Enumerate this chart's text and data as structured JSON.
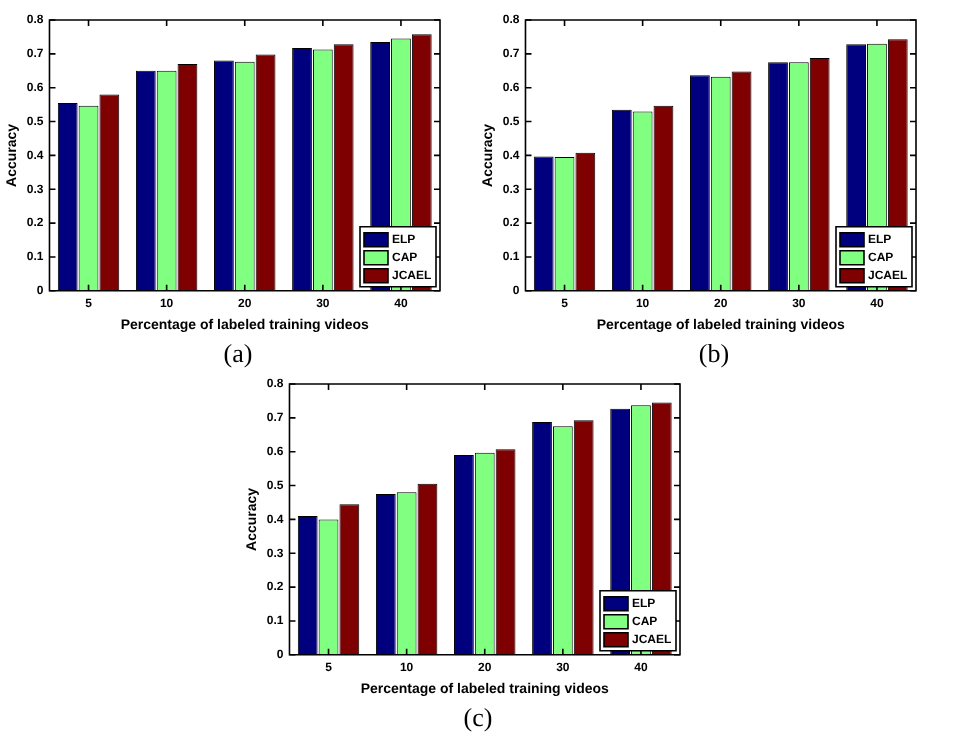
{
  "chart_data": [
    {
      "type": "bar",
      "xlabel": "Percentage of labeled training videos",
      "ylabel": "Accuracy",
      "categories": [
        "5",
        "10",
        "20",
        "30",
        "40"
      ],
      "series": [
        {
          "name": "ELP",
          "color": "#00007f",
          "values": [
            0.555,
            0.65,
            0.68,
            0.717,
            0.735
          ]
        },
        {
          "name": "CAP",
          "color": "#80ff80",
          "values": [
            0.547,
            0.65,
            0.677,
            0.713,
            0.745
          ]
        },
        {
          "name": "JCAEL",
          "color": "#7f0000",
          "values": [
            0.58,
            0.67,
            0.698,
            0.728,
            0.758
          ]
        }
      ],
      "ylim": [
        0,
        0.8
      ],
      "yticks": [
        0,
        0.1,
        0.2,
        0.3,
        0.4,
        0.5,
        0.6,
        0.7,
        0.8
      ],
      "grid": false,
      "legend": "bottom right",
      "annotations": [
        "(a)"
      ]
    },
    {
      "type": "bar",
      "xlabel": "Percentage of labeled training videos",
      "ylabel": "Accuracy",
      "categories": [
        "5",
        "10",
        "20",
        "30",
        "40"
      ],
      "series": [
        {
          "name": "ELP",
          "color": "#00007f",
          "values": [
            0.397,
            0.535,
            0.637,
            0.675,
            0.728
          ]
        },
        {
          "name": "CAP",
          "color": "#80ff80",
          "values": [
            0.395,
            0.53,
            0.632,
            0.675,
            0.73
          ]
        },
        {
          "name": "JCAEL",
          "color": "#7f0000",
          "values": [
            0.408,
            0.547,
            0.648,
            0.688,
            0.743
          ]
        }
      ],
      "ylim": [
        0,
        0.8
      ],
      "yticks": [
        0,
        0.1,
        0.2,
        0.3,
        0.4,
        0.5,
        0.6,
        0.7,
        0.8
      ],
      "grid": false,
      "legend": "bottom right",
      "annotations": [
        "(b)"
      ]
    },
    {
      "type": "bar",
      "xlabel": "Percentage of labeled training videos",
      "ylabel": "Accuracy",
      "categories": [
        "5",
        "10",
        "20",
        "30",
        "40"
      ],
      "series": [
        {
          "name": "ELP",
          "color": "#00007f",
          "values": [
            0.41,
            0.475,
            0.59,
            0.688,
            0.727
          ]
        },
        {
          "name": "CAP",
          "color": "#80ff80",
          "values": [
            0.4,
            0.48,
            0.597,
            0.675,
            0.737
          ]
        },
        {
          "name": "JCAEL",
          "color": "#7f0000",
          "values": [
            0.445,
            0.505,
            0.607,
            0.693,
            0.745
          ]
        }
      ],
      "ylim": [
        0,
        0.8
      ],
      "yticks": [
        0,
        0.1,
        0.2,
        0.3,
        0.4,
        0.5,
        0.6,
        0.7,
        0.8
      ],
      "grid": false,
      "legend": "bottom right",
      "annotations": [
        "(c)"
      ]
    }
  ]
}
